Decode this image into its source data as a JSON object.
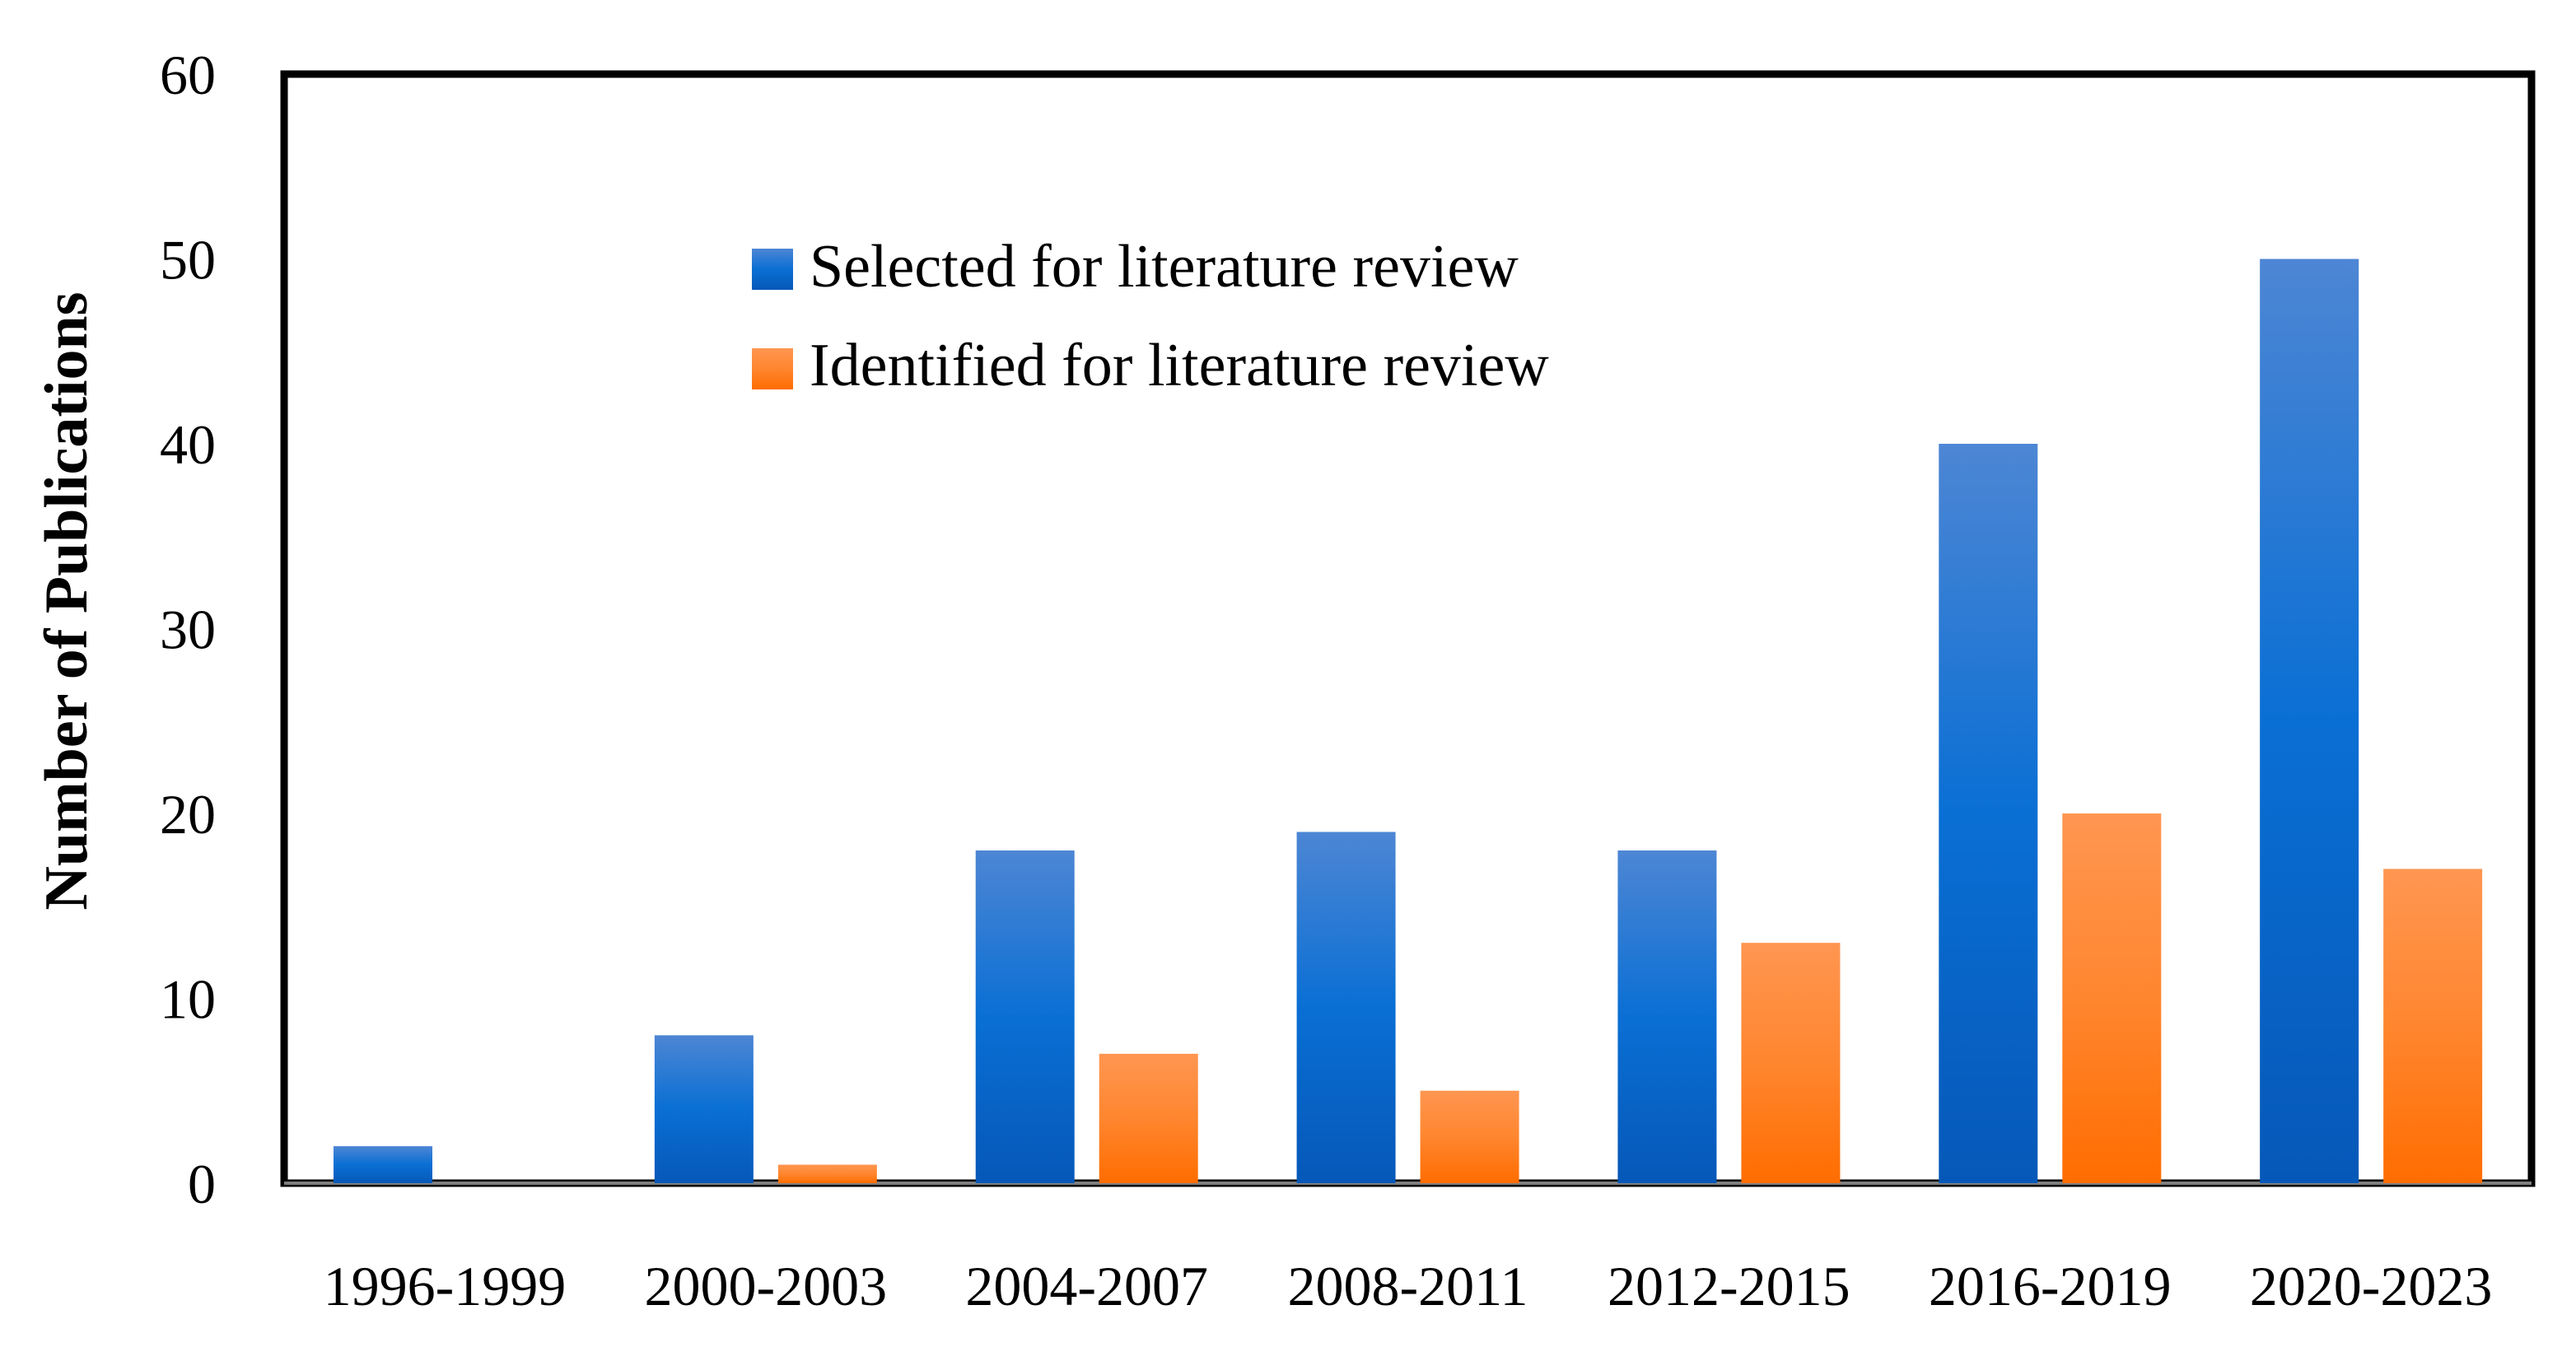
{
  "chart_data": {
    "type": "bar",
    "categories": [
      "1996-1999",
      "2000-2003",
      "2004-2007",
      "2008-2011",
      "2012-2015",
      "2016-2019",
      "2020-2023"
    ],
    "series": [
      {
        "name": "Selected for literature review",
        "values": [
          2,
          8,
          18,
          19,
          18,
          40,
          50
        ],
        "color": "#1f6fd0"
      },
      {
        "name": "Identified for literature review",
        "values": [
          0,
          1,
          7,
          5,
          13,
          20,
          17
        ],
        "color": "#ff7f27"
      }
    ],
    "ylabel": "Number of  Publications",
    "xlabel": "",
    "title": "",
    "ylim": [
      0,
      60
    ],
    "yticks": [
      "0",
      "10",
      "20",
      "30",
      "40",
      "50",
      "60"
    ],
    "grid": false,
    "legend_position": "top-center"
  }
}
